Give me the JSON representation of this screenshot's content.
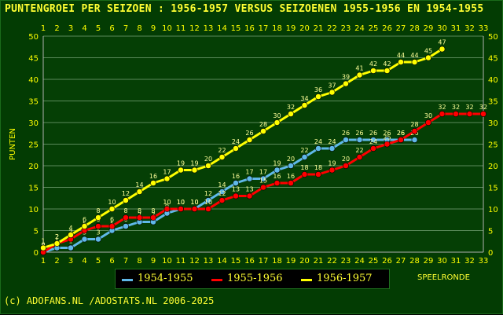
{
  "chart_data": {
    "type": "line",
    "title": "PUNTENGROEI PER SEIZOEN : 1956-1957 VERSUS SEIZOENEN 1955-1956 EN 1954-1955",
    "xlabel": "SPEELRONDE",
    "ylabel": "PUNTEN",
    "x": [
      1,
      2,
      3,
      4,
      5,
      6,
      7,
      8,
      9,
      10,
      11,
      12,
      13,
      14,
      15,
      16,
      17,
      18,
      19,
      20,
      21,
      22,
      23,
      24,
      25,
      26,
      27,
      28,
      29,
      30,
      31,
      32,
      33
    ],
    "xlim": [
      1,
      33
    ],
    "ylim": [
      0,
      50
    ],
    "yticks": [
      0,
      5,
      10,
      15,
      20,
      25,
      30,
      35,
      40,
      45,
      50
    ],
    "grid": true,
    "legend_position": "bottom",
    "series": [
      {
        "name": "1954-1955",
        "color": "#5fb8e8",
        "values": [
          0,
          1,
          1,
          3,
          3,
          5,
          6,
          7,
          7,
          9,
          10,
          10,
          12,
          14,
          16,
          17,
          17,
          19,
          20,
          22,
          24,
          24,
          26,
          26,
          26,
          26,
          26,
          26,
          null,
          null,
          null,
          null,
          null
        ]
      },
      {
        "name": "1955-1956",
        "color": "#ff0000",
        "values": [
          0,
          2,
          3,
          5,
          6,
          6,
          8,
          8,
          8,
          10,
          10,
          10,
          10,
          12,
          13,
          13,
          15,
          16,
          16,
          18,
          18,
          19,
          20,
          22,
          24,
          25,
          26,
          28,
          30,
          32,
          32,
          32,
          32
        ]
      },
      {
        "name": "1956-1957",
        "color": "#ffff00",
        "values": [
          1,
          2,
          4,
          6,
          8,
          10,
          12,
          14,
          16,
          17,
          19,
          19,
          20,
          22,
          24,
          26,
          28,
          30,
          32,
          34,
          36,
          37,
          39,
          41,
          42,
          42,
          44,
          44,
          45,
          47,
          null,
          null,
          null
        ]
      }
    ]
  },
  "credit": "(c) ADOFANS.NL /ADOSTATS.NL 2006-2025"
}
